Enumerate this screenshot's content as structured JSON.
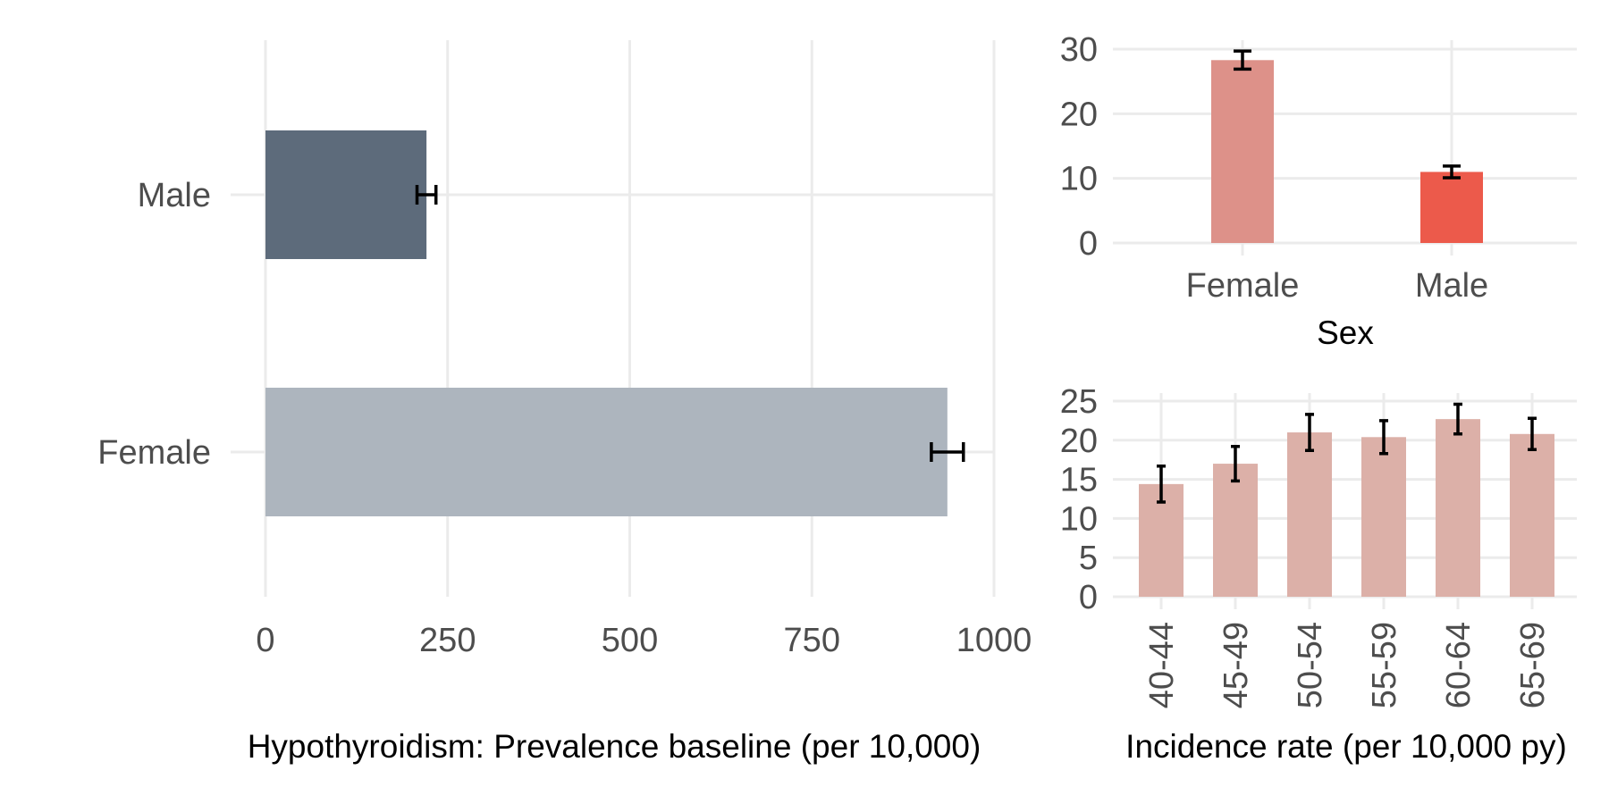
{
  "chart_data": [
    {
      "type": "bar",
      "orientation": "horizontal",
      "categories": [
        "Male",
        "Female"
      ],
      "values": [
        221,
        936
      ],
      "error_low": [
        208,
        914
      ],
      "error_high": [
        234,
        958
      ],
      "colors": [
        "#5d6b7b",
        "#adb5be"
      ],
      "xlabel": "Hypothyroidism: Prevalence baseline (per 10,000)",
      "ylabel": "",
      "xlim": [
        0,
        1000
      ],
      "xticks": [
        "0",
        "250",
        "500",
        "750",
        "1000"
      ],
      "grid": true
    },
    {
      "type": "bar",
      "categories": [
        "Female",
        "Male"
      ],
      "values": [
        28.3,
        11.0
      ],
      "error_low": [
        26.9,
        10.1
      ],
      "error_high": [
        29.7,
        11.9
      ],
      "colors": [
        "#dd9189",
        "#ec5a4b"
      ],
      "xlabel": "Sex",
      "ylabel": "",
      "ylim": [
        0,
        30
      ],
      "yticks": [
        "0",
        "10",
        "20",
        "30"
      ],
      "grid": true
    },
    {
      "type": "bar",
      "categories": [
        "40-44",
        "45-49",
        "50-54",
        "55-59",
        "60-64",
        "65-69"
      ],
      "values": [
        14.4,
        17.0,
        21.0,
        20.4,
        22.7,
        20.8
      ],
      "error_low": [
        12.1,
        14.8,
        18.7,
        18.3,
        20.8,
        18.8
      ],
      "error_high": [
        16.7,
        19.2,
        23.3,
        22.5,
        24.6,
        22.8
      ],
      "colors": [
        "#dcb0a8"
      ],
      "xlabel": "Incidence rate (per 10,000 py)",
      "ylabel": "",
      "ylim": [
        0,
        25
      ],
      "yticks": [
        "0",
        "5",
        "10",
        "15",
        "20",
        "25"
      ],
      "grid": true
    }
  ]
}
